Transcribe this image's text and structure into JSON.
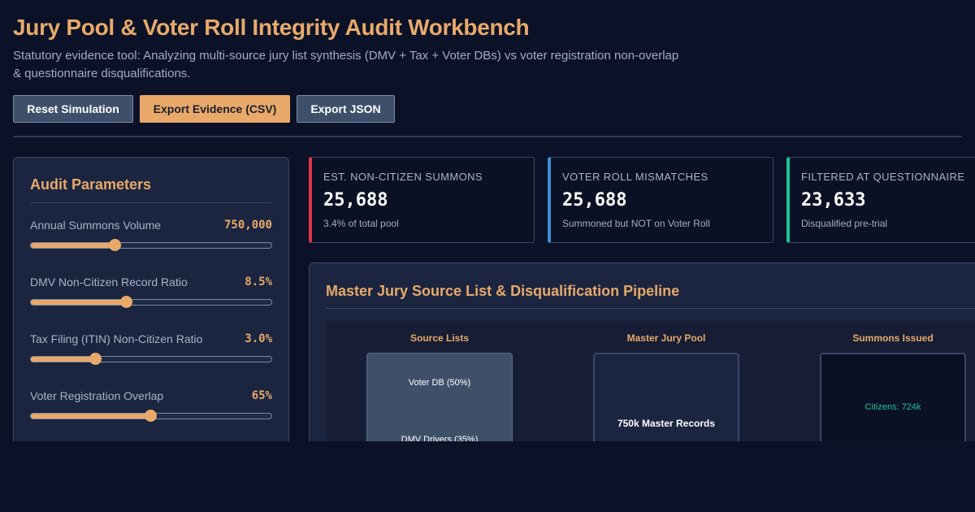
{
  "header": {
    "title": "Jury Pool & Voter Roll Integrity Audit Workbench",
    "subtitle": "Statutory evidence tool: Analyzing multi-source jury list synthesis (DMV + Tax + Voter DBs) vs voter registration non-overlap & questionnaire disqualifications."
  },
  "toolbar": {
    "reset_label": "Reset Simulation",
    "export_csv_label": "Export Evidence (CSV)",
    "export_json_label": "Export JSON"
  },
  "params": {
    "title": "Audit Parameters",
    "items": [
      {
        "label": "Annual Summons Volume",
        "value": "750,000",
        "fill": 0.35
      },
      {
        "label": "DMV Non-Citizen Record Ratio",
        "value": "8.5%",
        "fill": 0.4
      },
      {
        "label": "Tax Filing (ITIN) Non-Citizen Ratio",
        "value": "3.0%",
        "fill": 0.27
      },
      {
        "label": "Voter Registration Overlap",
        "value": "65%",
        "fill": 0.5
      }
    ]
  },
  "stats": [
    {
      "label": "EST. NON-CITIZEN SUMMONS",
      "value": "25,688",
      "sub": "3.4% of total pool",
      "color": "#e0364a"
    },
    {
      "label": "VOTER ROLL MISMATCHES",
      "value": "25,688",
      "sub": "Summoned but NOT on Voter Roll",
      "color": "#3d8fd6"
    },
    {
      "label": "FILTERED AT QUESTIONNAIRE",
      "value": "23,633",
      "sub": "Disqualified pre-trial",
      "color": "#1fc29a"
    }
  ],
  "pipeline": {
    "title": "Master Jury Source List & Disqualification Pipeline",
    "columns": [
      "Source Lists",
      "Master Jury Pool",
      "Summons Issued"
    ],
    "sources": [
      "Voter DB (50%)",
      "DMV Drivers (35%)"
    ],
    "master": "750k Master Records",
    "summons": "Citizens: 724k"
  },
  "colors": {
    "accent": "#e8a96a",
    "citizens": "#1fc29a"
  }
}
